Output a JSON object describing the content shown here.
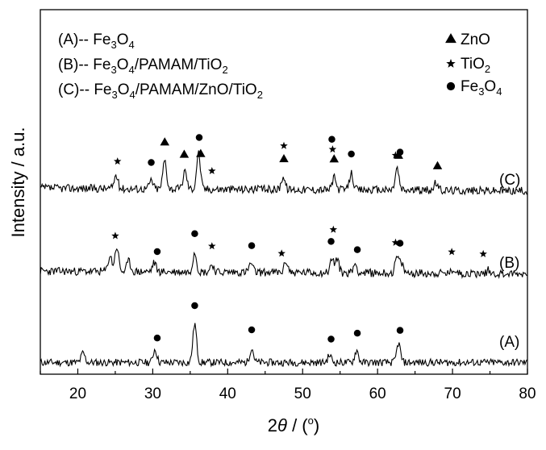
{
  "chart_data": {
    "type": "line",
    "xlabel_prefix": "2",
    "xlabel_theta": "θ",
    "xlabel_unit": " / (",
    "xlabel_degree": "o",
    "xlabel_close": ")",
    "ylabel": "Intensity / a.u.",
    "xlim": [
      15,
      80
    ],
    "xticks": [
      "20",
      "30",
      "40",
      "50",
      "60",
      "70",
      "80"
    ],
    "legend_samples": [
      {
        "prefix": "(A)-- ",
        "formula": [
          [
            "Fe",
            ""
          ],
          [
            "3",
            "sub"
          ],
          [
            "O",
            ""
          ],
          [
            "4",
            "sub"
          ]
        ]
      },
      {
        "prefix": "(B)-- ",
        "formula": [
          [
            "Fe",
            ""
          ],
          [
            "3",
            "sub"
          ],
          [
            "O",
            ""
          ],
          [
            "4",
            "sub"
          ],
          [
            "/PAMAM/TiO",
            ""
          ],
          [
            "2",
            "sub"
          ]
        ]
      },
      {
        "prefix": "(C)-- ",
        "formula": [
          [
            "Fe",
            ""
          ],
          [
            "3",
            "sub"
          ],
          [
            "O",
            ""
          ],
          [
            "4",
            "sub"
          ],
          [
            "/PAMAM/ZnO/TiO",
            ""
          ],
          [
            "2",
            "sub"
          ]
        ]
      }
    ],
    "legend_markers": [
      {
        "symbol": "triangle",
        "formula": [
          [
            "ZnO",
            ""
          ]
        ]
      },
      {
        "symbol": "star",
        "formula": [
          [
            "TiO",
            ""
          ],
          [
            "2",
            "sub"
          ]
        ]
      },
      {
        "symbol": "circle",
        "formula": [
          [
            "Fe",
            ""
          ],
          [
            "3",
            "sub"
          ],
          [
            "O",
            ""
          ],
          [
            "4",
            "sub"
          ]
        ]
      }
    ],
    "series": [
      {
        "label": "(A)",
        "peaks": [
          [
            20.7,
            0.4
          ],
          [
            30.3,
            0.55
          ],
          [
            35.6,
            1.6
          ],
          [
            43.2,
            0.6
          ],
          [
            53.6,
            0.3
          ],
          [
            57.2,
            0.5
          ],
          [
            62.8,
            0.8
          ]
        ],
        "markers": [
          {
            "symbol": "circle",
            "x": 30.6
          },
          {
            "symbol": "circle",
            "x": 35.6
          },
          {
            "symbol": "circle",
            "x": 43.2
          },
          {
            "symbol": "circle",
            "x": 53.8
          },
          {
            "symbol": "circle",
            "x": 57.3
          },
          {
            "symbol": "circle",
            "x": 63.0
          }
        ]
      },
      {
        "label": "(B)",
        "peaks": [
          [
            24.3,
            0.7
          ],
          [
            25.2,
            1.1
          ],
          [
            26.8,
            0.45
          ],
          [
            30.2,
            0.4
          ],
          [
            35.6,
            0.9
          ],
          [
            37.9,
            0.35
          ],
          [
            43.1,
            0.4
          ],
          [
            47.8,
            0.5
          ],
          [
            53.9,
            0.6
          ],
          [
            54.6,
            0.6
          ],
          [
            57.0,
            0.4
          ],
          [
            62.6,
            0.7
          ],
          [
            63.2,
            0.4
          ],
          [
            70.2,
            0.2
          ],
          [
            74.8,
            0.15
          ]
        ],
        "markers": [
          {
            "symbol": "star",
            "x": 25.0
          },
          {
            "symbol": "circle",
            "x": 30.6
          },
          {
            "symbol": "circle",
            "x": 35.6
          },
          {
            "symbol": "star",
            "x": 37.9
          },
          {
            "symbol": "circle",
            "x": 43.2
          },
          {
            "symbol": "star",
            "x": 47.2
          },
          {
            "symbol": "circle",
            "x": 53.8
          },
          {
            "symbol": "star",
            "x": 54.1
          },
          {
            "symbol": "circle",
            "x": 57.3
          },
          {
            "symbol": "star",
            "x": 62.4
          },
          {
            "symbol": "circle",
            "x": 63.0
          },
          {
            "symbol": "star",
            "x": 69.9
          },
          {
            "symbol": "star",
            "x": 74.1
          }
        ]
      },
      {
        "label": "(C)",
        "peaks": [
          [
            25.1,
            0.55
          ],
          [
            29.8,
            0.35
          ],
          [
            31.6,
            1.2
          ],
          [
            34.3,
            0.75
          ],
          [
            36.1,
            1.5
          ],
          [
            47.4,
            0.55
          ],
          [
            54.2,
            0.5
          ],
          [
            56.5,
            0.7
          ],
          [
            62.6,
            0.9
          ],
          [
            67.8,
            0.3
          ]
        ],
        "markers": [
          {
            "symbol": "star",
            "x": 25.3
          },
          {
            "symbol": "circle",
            "x": 29.8
          },
          {
            "symbol": "triangle",
            "x": 31.6
          },
          {
            "symbol": "triangle",
            "x": 34.2
          },
          {
            "symbol": "triangle",
            "x": 36.4
          },
          {
            "symbol": "circle",
            "x": 36.2
          },
          {
            "symbol": "star",
            "x": 37.9
          },
          {
            "symbol": "triangle",
            "x": 47.5
          },
          {
            "symbol": "star",
            "x": 47.5
          },
          {
            "symbol": "triangle",
            "x": 54.2
          },
          {
            "symbol": "star",
            "x": 54.0
          },
          {
            "symbol": "circle",
            "x": 53.9
          },
          {
            "symbol": "circle",
            "x": 56.5
          },
          {
            "symbol": "triangle",
            "x": 62.8
          },
          {
            "symbol": "circle",
            "x": 63.0
          },
          {
            "symbol": "star",
            "x": 62.4
          },
          {
            "symbol": "triangle",
            "x": 68.0
          }
        ]
      }
    ],
    "grid": false,
    "legend_position": "top"
  }
}
